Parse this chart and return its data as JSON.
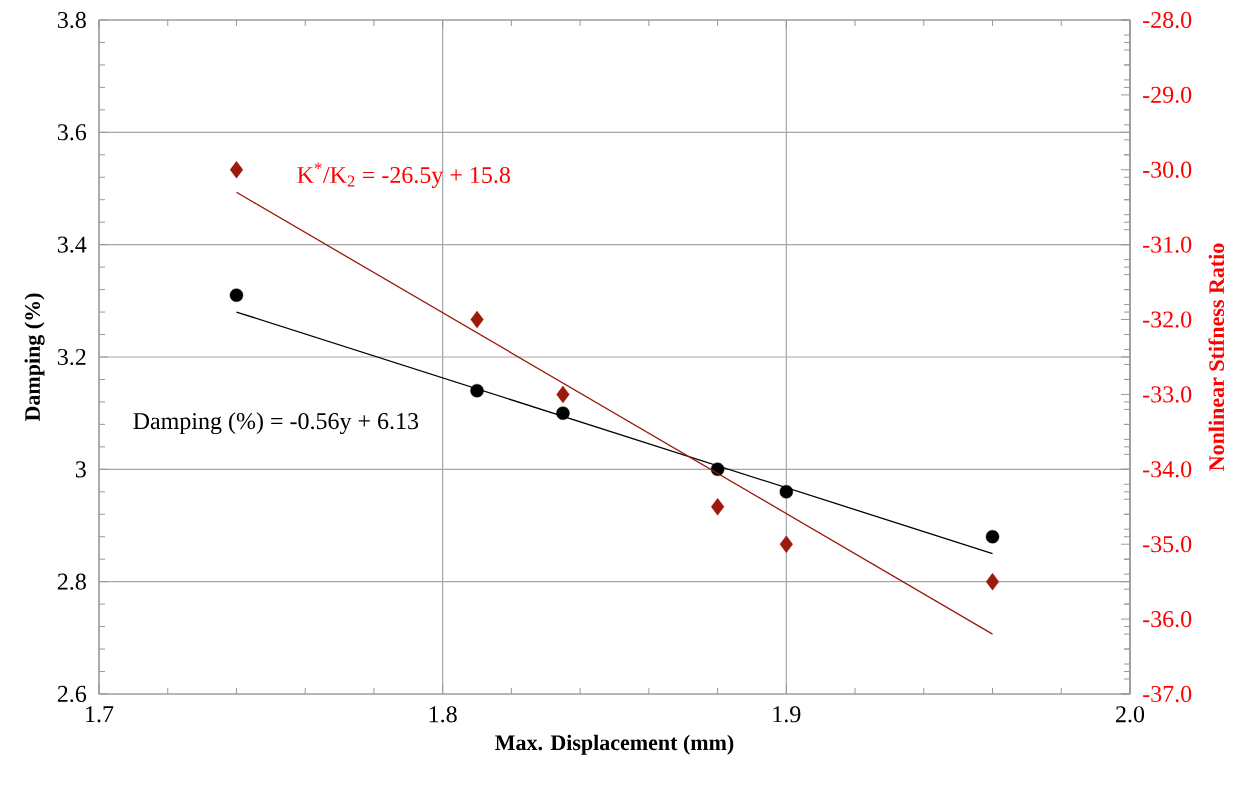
{
  "chart_data": {
    "type": "scatter",
    "xlabel": "Max. Displacement (mm)",
    "ylabel": "Damping (%)",
    "y2label": "Nonlinear Stifness Ratio",
    "xlim": [
      1.7,
      2.0
    ],
    "xticks": [
      {
        "value": 1.7,
        "label": "1.7"
      },
      {
        "value": 1.8,
        "label": "1.8"
      },
      {
        "value": 1.9,
        "label": "1.9"
      },
      {
        "value": 2.0,
        "label": "2.0"
      }
    ],
    "ylim": [
      2.6,
      3.8
    ],
    "yticks": [
      {
        "value": 2.6,
        "label": "2.6"
      },
      {
        "value": 2.8,
        "label": "2.8"
      },
      {
        "value": 3.0,
        "label": "3"
      },
      {
        "value": 3.2,
        "label": "3.2"
      },
      {
        "value": 3.4,
        "label": "3.4"
      },
      {
        "value": 3.6,
        "label": "3.6"
      },
      {
        "value": 3.8,
        "label": "3.8"
      }
    ],
    "y2lim": [
      -37,
      -28
    ],
    "y2ticks": [
      {
        "value": -37,
        "label": "-37.0"
      },
      {
        "value": -36,
        "label": "-36.0"
      },
      {
        "value": -35,
        "label": "-35.0"
      },
      {
        "value": -34,
        "label": "-34.0"
      },
      {
        "value": -33,
        "label": "-33.0"
      },
      {
        "value": -32,
        "label": "-32.0"
      },
      {
        "value": -31,
        "label": "-31.0"
      },
      {
        "value": -30,
        "label": "-30.0"
      },
      {
        "value": -29,
        "label": "-29.0"
      },
      {
        "value": -28,
        "label": "-28.0"
      }
    ],
    "grid": true,
    "series": [
      {
        "marker": "circle",
        "color": "#000000",
        "x": [
          1.74,
          1.81,
          1.835,
          1.88,
          1.9,
          1.96
        ],
        "values": [
          3.31,
          3.14,
          3.1,
          3.0,
          2.96,
          2.88
        ]
      },
      {
        "marker": "diamond",
        "color": "#9c1a0c",
        "axis": "y2",
        "x": [
          1.74,
          1.81,
          1.835,
          1.88,
          1.9,
          1.96
        ],
        "values": [
          -30.0,
          -32.0,
          -33.0,
          -34.5,
          -35.0,
          -35.5
        ]
      },
      {
        "type": "line",
        "marker": "none",
        "name": "Damping (%) = -0.56y + 6.13",
        "color": "#000000",
        "x": [
          1.74,
          1.96
        ],
        "values": [
          3.28,
          2.85
        ]
      },
      {
        "type": "line",
        "marker": "none",
        "name": "K$^{*}$/K$_{2}$ = -26.5y + 15.8",
        "color": "#9c1a0c",
        "axis": "y2",
        "x": [
          1.74,
          1.96
        ],
        "values": [
          -30.3,
          -36.2
        ]
      }
    ]
  }
}
